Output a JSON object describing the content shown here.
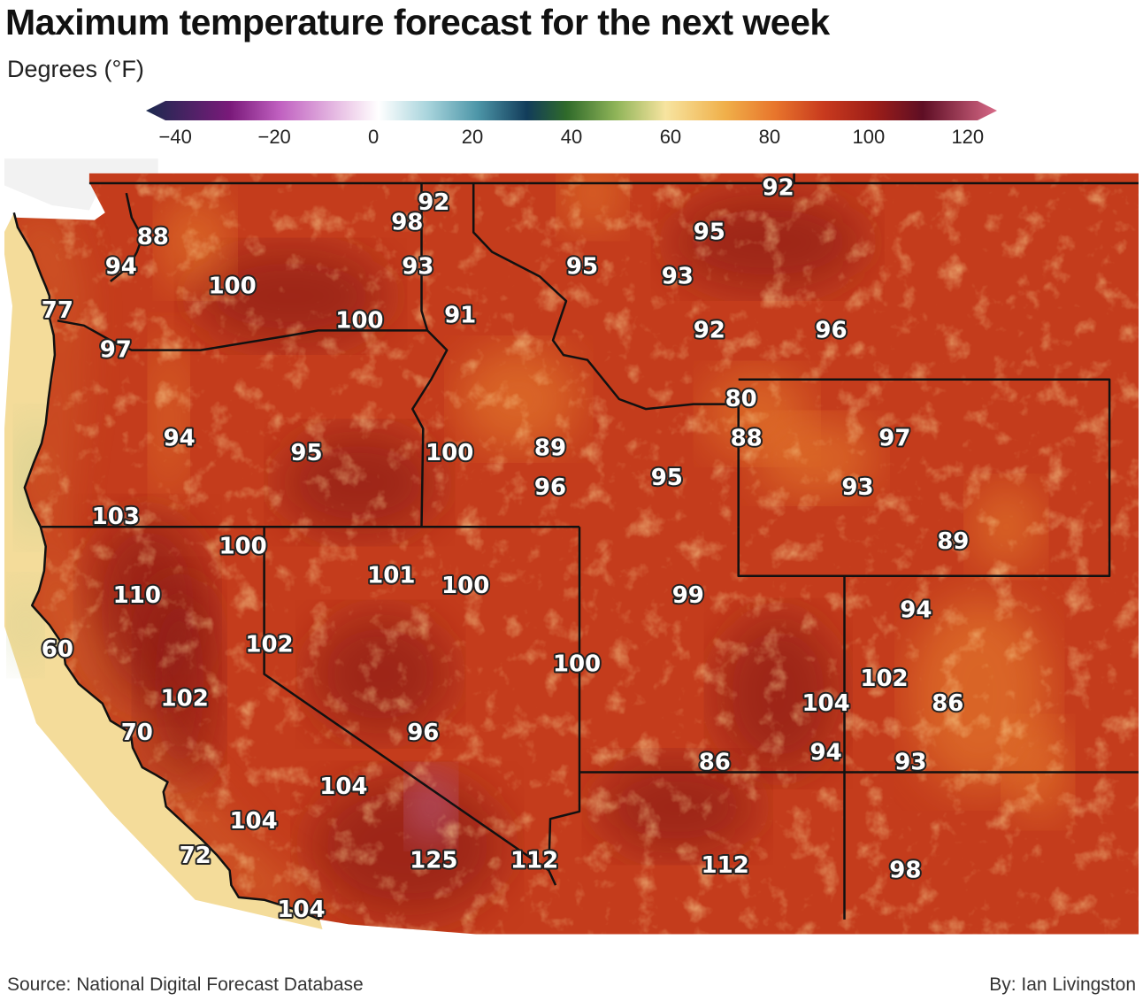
{
  "title": "Maximum temperature forecast for the next week",
  "subtitle": "Degrees (°F)",
  "colorbar": {
    "ticks": [
      "−40",
      "−20",
      "0",
      "20",
      "40",
      "60",
      "80",
      "100",
      "120"
    ],
    "stops": [
      {
        "value": -47,
        "color": "#1b2a4e"
      },
      {
        "value": -30,
        "color": "#7a1a7a"
      },
      {
        "value": -20,
        "color": "#c060c0"
      },
      {
        "value": -5,
        "color": "#f2d8ee"
      },
      {
        "value": 0,
        "color": "#ffffff"
      },
      {
        "value": 10,
        "color": "#a8d4dc"
      },
      {
        "value": 20,
        "color": "#4d96a8"
      },
      {
        "value": 30,
        "color": "#123c5a"
      },
      {
        "value": 38,
        "color": "#2f6a2a"
      },
      {
        "value": 48,
        "color": "#8fb458"
      },
      {
        "value": 58,
        "color": "#f7e4a0"
      },
      {
        "value": 70,
        "color": "#f0b04a"
      },
      {
        "value": 80,
        "color": "#e8762c"
      },
      {
        "value": 90,
        "color": "#c83a1e"
      },
      {
        "value": 100,
        "color": "#9e1e18"
      },
      {
        "value": 110,
        "color": "#5e0e24"
      },
      {
        "value": 125,
        "color": "#d86a88"
      }
    ]
  },
  "colors": {
    "background": "#ffffff",
    "ocean_near": "#f4dc9a",
    "land_base": "#c43c1c",
    "land_hot": "#8e1a16",
    "land_mild": "#e8802e",
    "borders": "#111111",
    "canada": "#f2f2f2"
  },
  "temperatures": [
    {
      "label": "92",
      "lat": 48.6,
      "lon": -116.8
    },
    {
      "label": "98",
      "lat": 48.2,
      "lon": -117.3
    },
    {
      "label": "93",
      "lat": 47.3,
      "lon": -117.1
    },
    {
      "label": "88",
      "lat": 47.9,
      "lon": -122.1
    },
    {
      "label": "94",
      "lat": 47.3,
      "lon": -122.7
    },
    {
      "label": "100",
      "lat": 46.9,
      "lon": -120.6
    },
    {
      "label": "77",
      "lat": 46.4,
      "lon": -123.9
    },
    {
      "label": "100",
      "lat": 46.2,
      "lon": -118.2
    },
    {
      "label": "97",
      "lat": 45.6,
      "lon": -122.8
    },
    {
      "label": "91",
      "lat": 46.3,
      "lon": -116.3
    },
    {
      "label": "95",
      "lat": 47.3,
      "lon": -114.0
    },
    {
      "label": "95",
      "lat": 48.0,
      "lon": -111.6
    },
    {
      "label": "93",
      "lat": 47.1,
      "lon": -112.2
    },
    {
      "label": "92",
      "lat": 48.9,
      "lon": -110.3
    },
    {
      "label": "92",
      "lat": 46.0,
      "lon": -111.6
    },
    {
      "label": "96",
      "lat": 46.0,
      "lon": -109.3
    },
    {
      "label": "94",
      "lat": 43.8,
      "lon": -121.6
    },
    {
      "label": "95",
      "lat": 43.5,
      "lon": -119.2
    },
    {
      "label": "103",
      "lat": 42.2,
      "lon": -122.8
    },
    {
      "label": "100",
      "lat": 43.5,
      "lon": -116.5
    },
    {
      "label": "89",
      "lat": 43.6,
      "lon": -114.6
    },
    {
      "label": "96",
      "lat": 42.8,
      "lon": -114.6
    },
    {
      "label": "95",
      "lat": 43.0,
      "lon": -112.4
    },
    {
      "label": "80",
      "lat": 44.6,
      "lon": -111.0
    },
    {
      "label": "88",
      "lat": 43.8,
      "lon": -110.9
    },
    {
      "label": "97",
      "lat": 43.8,
      "lon": -108.1
    },
    {
      "label": "93",
      "lat": 42.8,
      "lon": -108.8
    },
    {
      "label": "89",
      "lat": 41.7,
      "lon": -107.0
    },
    {
      "label": "100",
      "lat": 41.6,
      "lon": -120.4
    },
    {
      "label": "110",
      "lat": 40.6,
      "lon": -122.4
    },
    {
      "label": "60",
      "lat": 39.5,
      "lon": -123.9
    },
    {
      "label": "102",
      "lat": 39.6,
      "lon": -119.9
    },
    {
      "label": "102",
      "lat": 38.5,
      "lon": -121.5
    },
    {
      "label": "70",
      "lat": 37.8,
      "lon": -122.4
    },
    {
      "label": "104",
      "lat": 36.7,
      "lon": -118.5
    },
    {
      "label": "104",
      "lat": 36.0,
      "lon": -120.2
    },
    {
      "label": "72",
      "lat": 35.3,
      "lon": -121.3
    },
    {
      "label": "104",
      "lat": 34.2,
      "lon": -119.3
    },
    {
      "label": "101",
      "lat": 41.0,
      "lon": -117.6
    },
    {
      "label": "100",
      "lat": 40.8,
      "lon": -116.2
    },
    {
      "label": "96",
      "lat": 37.8,
      "lon": -117.0
    },
    {
      "label": "125",
      "lat": 35.2,
      "lon": -116.8
    },
    {
      "label": "112",
      "lat": 35.2,
      "lon": -114.9
    },
    {
      "label": "100",
      "lat": 39.2,
      "lon": -114.1
    },
    {
      "label": "99",
      "lat": 40.6,
      "lon": -112.0
    },
    {
      "label": "86",
      "lat": 37.2,
      "lon": -111.5
    },
    {
      "label": "112",
      "lat": 35.1,
      "lon": -111.3
    },
    {
      "label": "104",
      "lat": 38.4,
      "lon": -109.4
    },
    {
      "label": "94",
      "lat": 37.4,
      "lon": -109.4
    },
    {
      "label": "102",
      "lat": 38.9,
      "lon": -108.3
    },
    {
      "label": "94",
      "lat": 40.3,
      "lon": -107.7
    },
    {
      "label": "86",
      "lat": 38.4,
      "lon": -107.1
    },
    {
      "label": "93",
      "lat": 37.2,
      "lon": -107.8
    },
    {
      "label": "98",
      "lat": 35.0,
      "lon": -107.9
    }
  ],
  "source_label": "Source: National Digital Forecast Database",
  "byline": "By: Ian Livingston"
}
